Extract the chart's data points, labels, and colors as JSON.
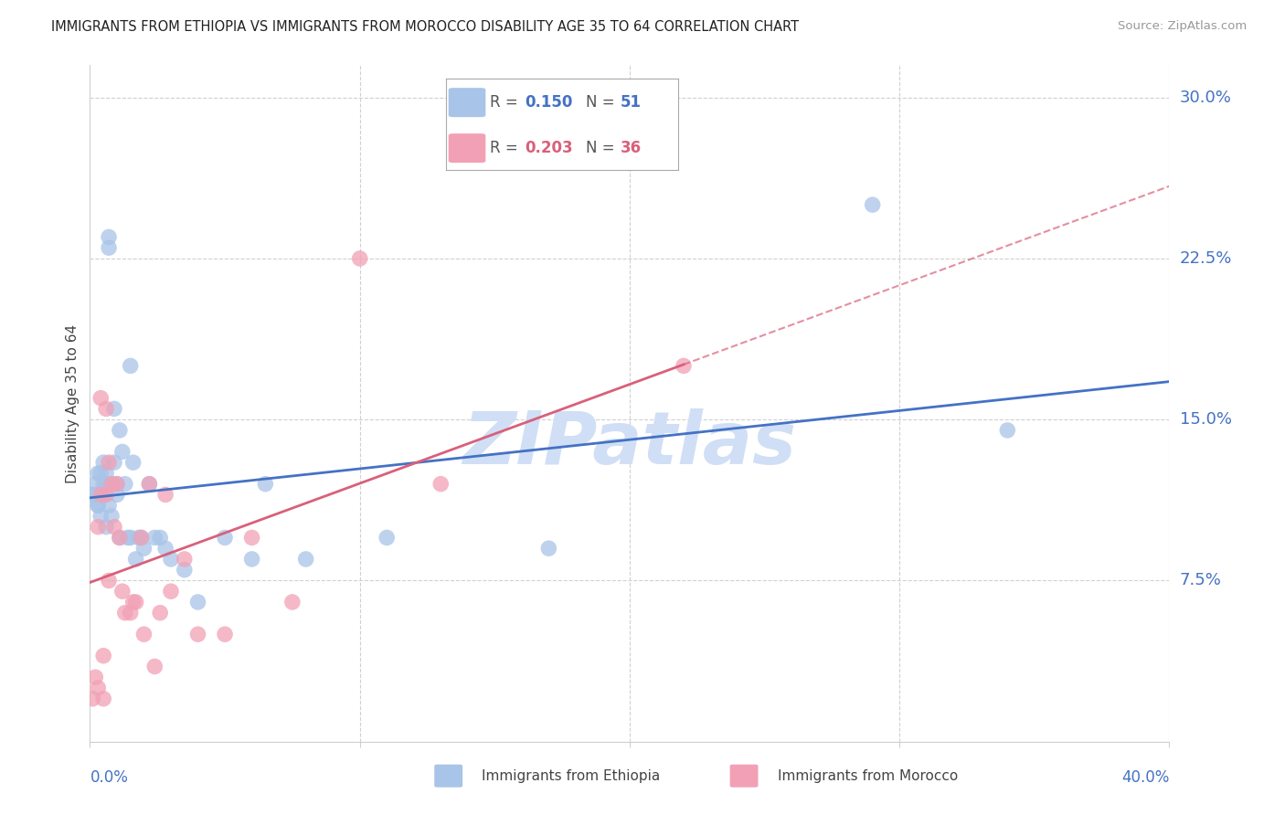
{
  "title": "IMMIGRANTS FROM ETHIOPIA VS IMMIGRANTS FROM MOROCCO DISABILITY AGE 35 TO 64 CORRELATION CHART",
  "source": "Source: ZipAtlas.com",
  "ylabel": "Disability Age 35 to 64",
  "ytick_labels": [
    "7.5%",
    "15.0%",
    "22.5%",
    "30.0%"
  ],
  "ytick_values": [
    0.075,
    0.15,
    0.225,
    0.3
  ],
  "xmin": 0.0,
  "xmax": 0.4,
  "ymin": 0.0,
  "ymax": 0.315,
  "color_ethiopia": "#a8c4e8",
  "color_morocco": "#f2a0b5",
  "color_ethiopia_line": "#4472c4",
  "color_morocco_line": "#d9607a",
  "color_axis_labels": "#4472c4",
  "watermark_color": "#d0dff5",
  "ethiopia_x": [
    0.001,
    0.002,
    0.002,
    0.003,
    0.003,
    0.003,
    0.004,
    0.004,
    0.004,
    0.005,
    0.005,
    0.005,
    0.006,
    0.006,
    0.006,
    0.007,
    0.007,
    0.007,
    0.008,
    0.008,
    0.009,
    0.009,
    0.01,
    0.01,
    0.011,
    0.011,
    0.012,
    0.013,
    0.014,
    0.015,
    0.015,
    0.016,
    0.017,
    0.018,
    0.019,
    0.02,
    0.022,
    0.024,
    0.026,
    0.028,
    0.03,
    0.035,
    0.04,
    0.05,
    0.06,
    0.065,
    0.08,
    0.11,
    0.17,
    0.29,
    0.34
  ],
  "ethiopia_y": [
    0.115,
    0.12,
    0.115,
    0.11,
    0.125,
    0.11,
    0.115,
    0.125,
    0.105,
    0.12,
    0.115,
    0.13,
    0.1,
    0.12,
    0.125,
    0.11,
    0.23,
    0.235,
    0.12,
    0.105,
    0.155,
    0.13,
    0.115,
    0.12,
    0.145,
    0.095,
    0.135,
    0.12,
    0.095,
    0.175,
    0.095,
    0.13,
    0.085,
    0.095,
    0.095,
    0.09,
    0.12,
    0.095,
    0.095,
    0.09,
    0.085,
    0.08,
    0.065,
    0.095,
    0.085,
    0.12,
    0.085,
    0.095,
    0.09,
    0.25,
    0.145
  ],
  "morocco_x": [
    0.001,
    0.002,
    0.003,
    0.003,
    0.004,
    0.004,
    0.005,
    0.005,
    0.006,
    0.006,
    0.007,
    0.007,
    0.008,
    0.009,
    0.01,
    0.011,
    0.012,
    0.013,
    0.015,
    0.016,
    0.017,
    0.019,
    0.02,
    0.022,
    0.024,
    0.026,
    0.028,
    0.03,
    0.035,
    0.04,
    0.05,
    0.06,
    0.075,
    0.1,
    0.13,
    0.22
  ],
  "morocco_y": [
    0.02,
    0.03,
    0.025,
    0.1,
    0.115,
    0.16,
    0.02,
    0.04,
    0.115,
    0.155,
    0.13,
    0.075,
    0.12,
    0.1,
    0.12,
    0.095,
    0.07,
    0.06,
    0.06,
    0.065,
    0.065,
    0.095,
    0.05,
    0.12,
    0.035,
    0.06,
    0.115,
    0.07,
    0.085,
    0.05,
    0.05,
    0.095,
    0.065,
    0.225,
    0.12,
    0.175
  ]
}
